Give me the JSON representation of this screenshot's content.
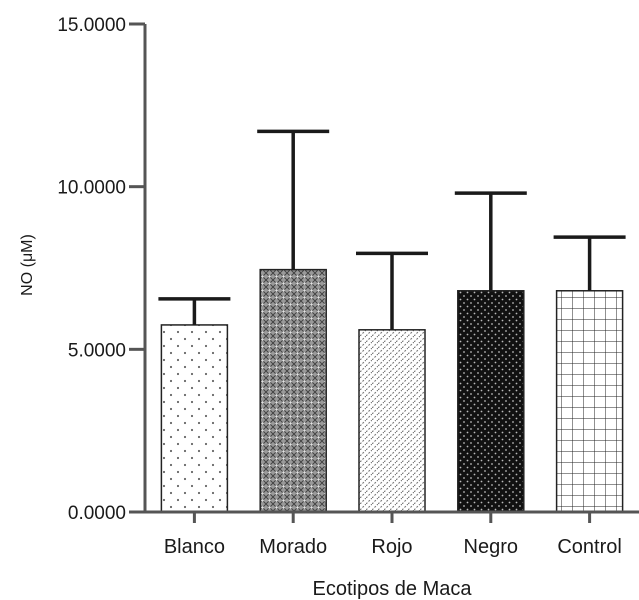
{
  "chart_data": {
    "type": "bar",
    "title": "",
    "xlabel": "Ecotipos de Maca",
    "ylabel": "NO (μM)",
    "ylim": [
      0,
      15
    ],
    "yticks": [
      0,
      5,
      10,
      15
    ],
    "ytick_labels": [
      "0.0000",
      "5.0000",
      "10.0000",
      "15.0000"
    ],
    "categories": [
      "Blanco",
      "Morado",
      "Rojo",
      "Negro",
      "Control"
    ],
    "values": [
      5.75,
      7.45,
      5.6,
      6.8,
      6.8
    ],
    "errors": [
      0.8,
      4.25,
      2.35,
      3.0,
      1.65
    ],
    "patterns": [
      "dots-sparse",
      "crosshatch-gray",
      "diagonal-dash",
      "dots-on-black",
      "grid"
    ],
    "grid": false,
    "legend": "none"
  }
}
